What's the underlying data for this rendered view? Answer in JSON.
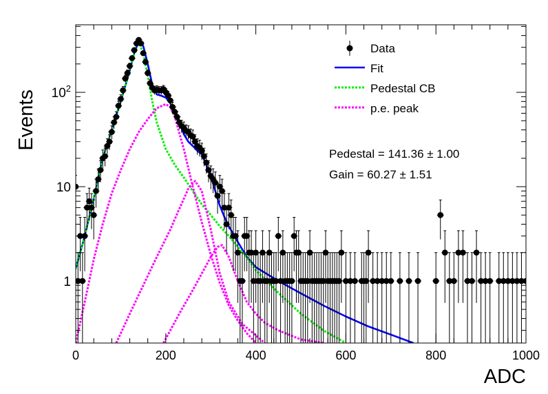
{
  "chart_data": {
    "type": "scatter",
    "xlabel": "ADC",
    "ylabel": "Events",
    "xlim": [
      0,
      1000
    ],
    "ylim": [
      0.22,
      520
    ],
    "yscale": "log",
    "grid": false,
    "legend_position": "top-right",
    "x_ticks": [
      {
        "value": 0,
        "label": "0"
      },
      {
        "value": 200,
        "label": "200"
      },
      {
        "value": 400,
        "label": "400"
      },
      {
        "value": 600,
        "label": "600"
      },
      {
        "value": 800,
        "label": "800"
      },
      {
        "value": 1000,
        "label": "1000"
      }
    ],
    "y_ticks": [
      {
        "value": 1,
        "label": "1"
      },
      {
        "value": 10,
        "label": "10"
      },
      {
        "value": 100,
        "label": "10^2"
      }
    ],
    "legend": [
      {
        "label": "Data",
        "style": "marker",
        "color": "#000000"
      },
      {
        "label": "Fit",
        "style": "solid",
        "color": "#0000ff"
      },
      {
        "label": "Pedestal CB",
        "style": "dotted",
        "color": "#00ee00"
      },
      {
        "label": "p.e. peak",
        "style": "dotted",
        "color": "#ff00ff"
      }
    ],
    "annotations": [
      "Pedestal = 141.36 ± 1.00",
      "Gain = 60.27 ± 1.51"
    ],
    "fit_parameters": {
      "pedestal": 141.36,
      "pedestal_error": 1.0,
      "gain": 60.27,
      "gain_error": 1.51
    },
    "series": [
      {
        "name": "Data",
        "kind": "points",
        "color": "#000000",
        "points": [
          [
            0,
            10
          ],
          [
            5,
            1
          ],
          [
            10,
            3
          ],
          [
            15,
            1
          ],
          [
            20,
            3
          ],
          [
            25,
            6
          ],
          [
            30,
            7
          ],
          [
            35,
            6
          ],
          [
            40,
            5
          ],
          [
            45,
            9
          ],
          [
            50,
            12
          ],
          [
            55,
            15
          ],
          [
            60,
            20
          ],
          [
            65,
            21
          ],
          [
            70,
            27
          ],
          [
            75,
            30
          ],
          [
            80,
            38
          ],
          [
            85,
            48
          ],
          [
            90,
            55
          ],
          [
            95,
            72
          ],
          [
            100,
            85
          ],
          [
            105,
            105
          ],
          [
            110,
            140
          ],
          [
            115,
            160
          ],
          [
            120,
            190
          ],
          [
            125,
            230
          ],
          [
            130,
            280
          ],
          [
            135,
            330
          ],
          [
            140,
            360
          ],
          [
            145,
            330
          ],
          [
            150,
            260
          ],
          [
            155,
            210
          ],
          [
            160,
            160
          ],
          [
            165,
            125
          ],
          [
            170,
            112
          ],
          [
            175,
            105
          ],
          [
            180,
            107
          ],
          [
            185,
            105
          ],
          [
            190,
            105
          ],
          [
            195,
            108
          ],
          [
            200,
            100
          ],
          [
            205,
            93
          ],
          [
            210,
            82
          ],
          [
            215,
            70
          ],
          [
            220,
            62
          ],
          [
            225,
            55
          ],
          [
            230,
            48
          ],
          [
            235,
            44
          ],
          [
            240,
            42
          ],
          [
            245,
            39
          ],
          [
            250,
            38
          ],
          [
            255,
            35
          ],
          [
            260,
            34
          ],
          [
            265,
            30
          ],
          [
            270,
            27
          ],
          [
            275,
            26
          ],
          [
            280,
            24
          ],
          [
            285,
            21
          ],
          [
            290,
            18
          ],
          [
            295,
            15
          ],
          [
            300,
            13
          ],
          [
            305,
            12
          ],
          [
            310,
            11
          ],
          [
            315,
            8
          ],
          [
            320,
            10
          ],
          [
            325,
            9
          ],
          [
            330,
            6
          ],
          [
            335,
            4
          ],
          [
            340,
            6
          ],
          [
            345,
            5
          ],
          [
            350,
            3
          ],
          [
            355,
            3
          ],
          [
            360,
            2
          ],
          [
            365,
            1
          ],
          [
            370,
            1
          ],
          [
            375,
            3
          ],
          [
            380,
            3
          ],
          [
            385,
            2
          ],
          [
            390,
            2
          ],
          [
            395,
            1
          ],
          [
            400,
            2
          ],
          [
            405,
            1
          ],
          [
            410,
            1
          ],
          [
            415,
            2
          ],
          [
            420,
            1
          ],
          [
            425,
            1
          ],
          [
            430,
            2
          ],
          [
            435,
            1
          ],
          [
            440,
            1
          ],
          [
            445,
            1
          ],
          [
            450,
            3
          ],
          [
            455,
            1
          ],
          [
            460,
            2
          ],
          [
            465,
            1
          ],
          [
            470,
            1
          ],
          [
            475,
            1
          ],
          [
            480,
            1
          ],
          [
            485,
            3
          ],
          [
            490,
            2
          ],
          [
            495,
            2
          ],
          [
            500,
            1
          ],
          [
            505,
            1
          ],
          [
            510,
            1
          ],
          [
            515,
            1
          ],
          [
            520,
            2
          ],
          [
            525,
            1
          ],
          [
            530,
            1
          ],
          [
            535,
            1
          ],
          [
            540,
            1
          ],
          [
            545,
            1
          ],
          [
            550,
            1
          ],
          [
            555,
            2
          ],
          [
            560,
            1
          ],
          [
            565,
            1
          ],
          [
            570,
            1
          ],
          [
            575,
            1
          ],
          [
            580,
            1
          ],
          [
            585,
            1
          ],
          [
            590,
            2
          ],
          [
            600,
            1
          ],
          [
            610,
            1
          ],
          [
            620,
            1
          ],
          [
            635,
            1
          ],
          [
            640,
            1
          ],
          [
            645,
            1
          ],
          [
            650,
            2
          ],
          [
            660,
            1
          ],
          [
            670,
            1
          ],
          [
            680,
            1
          ],
          [
            690,
            1
          ],
          [
            700,
            1
          ],
          [
            720,
            1
          ],
          [
            740,
            1
          ],
          [
            760,
            1
          ],
          [
            800,
            1
          ],
          [
            810,
            5
          ],
          [
            820,
            2
          ],
          [
            830,
            1
          ],
          [
            840,
            1
          ],
          [
            850,
            2
          ],
          [
            860,
            2
          ],
          [
            870,
            1
          ],
          [
            880,
            1
          ],
          [
            890,
            2
          ],
          [
            900,
            1
          ],
          [
            910,
            1
          ],
          [
            920,
            1
          ],
          [
            940,
            1
          ],
          [
            950,
            1
          ],
          [
            960,
            1
          ],
          [
            970,
            1
          ],
          [
            980,
            1
          ],
          [
            990,
            1
          ],
          [
            1000,
            1
          ]
        ]
      },
      {
        "name": "Fit",
        "kind": "curve",
        "color": "#0000ff",
        "points": [
          [
            0,
            1.35
          ],
          [
            20,
            3
          ],
          [
            40,
            7.5
          ],
          [
            60,
            20
          ],
          [
            80,
            40
          ],
          [
            100,
            80
          ],
          [
            120,
            170
          ],
          [
            130,
            260
          ],
          [
            140,
            350
          ],
          [
            150,
            310
          ],
          [
            160,
            200
          ],
          [
            170,
            120
          ],
          [
            180,
            95
          ],
          [
            190,
            92
          ],
          [
            200,
            88
          ],
          [
            210,
            77
          ],
          [
            220,
            62
          ],
          [
            230,
            48
          ],
          [
            240,
            36
          ],
          [
            250,
            30
          ],
          [
            260,
            27
          ],
          [
            270,
            24
          ],
          [
            280,
            22
          ],
          [
            290,
            17
          ],
          [
            300,
            13
          ],
          [
            310,
            9
          ],
          [
            320,
            6.3
          ],
          [
            330,
            4.8
          ],
          [
            340,
            3.8
          ],
          [
            360,
            2.6
          ],
          [
            380,
            1.8
          ],
          [
            400,
            1.4
          ],
          [
            450,
            1.0
          ],
          [
            500,
            0.74
          ],
          [
            550,
            0.55
          ],
          [
            600,
            0.42
          ],
          [
            650,
            0.33
          ],
          [
            700,
            0.27
          ],
          [
            750,
            0.22
          ]
        ]
      },
      {
        "name": "Pedestal CB",
        "kind": "curve",
        "color": "#00ee00",
        "points": [
          [
            0,
            1.35
          ],
          [
            20,
            3
          ],
          [
            40,
            7.5
          ],
          [
            60,
            20
          ],
          [
            80,
            40
          ],
          [
            100,
            80
          ],
          [
            120,
            170
          ],
          [
            130,
            260
          ],
          [
            140,
            340
          ],
          [
            150,
            260
          ],
          [
            160,
            150
          ],
          [
            170,
            80
          ],
          [
            180,
            48
          ],
          [
            200,
            25
          ],
          [
            220,
            17
          ],
          [
            240,
            12.5
          ],
          [
            260,
            9
          ],
          [
            280,
            6.5
          ],
          [
            300,
            5
          ],
          [
            320,
            3.8
          ],
          [
            340,
            3
          ],
          [
            360,
            2.3
          ],
          [
            380,
            1.8
          ],
          [
            400,
            1.3
          ],
          [
            450,
            0.75
          ],
          [
            500,
            0.45
          ],
          [
            550,
            0.3
          ],
          [
            600,
            0.22
          ]
        ]
      },
      {
        "name": "p.e. peak 1",
        "kind": "curve",
        "color": "#ff00ff",
        "points": [
          [
            0,
            0.22
          ],
          [
            20,
            0.6
          ],
          [
            40,
            1.7
          ],
          [
            60,
            4
          ],
          [
            80,
            8.5
          ],
          [
            100,
            15
          ],
          [
            120,
            25
          ],
          [
            140,
            38
          ],
          [
            160,
            52
          ],
          [
            180,
            68
          ],
          [
            200,
            75
          ],
          [
            210,
            70
          ],
          [
            220,
            55
          ],
          [
            240,
            25
          ],
          [
            260,
            10
          ],
          [
            280,
            4.2
          ],
          [
            300,
            1.9
          ],
          [
            320,
            0.95
          ],
          [
            340,
            0.55
          ],
          [
            360,
            0.38
          ],
          [
            380,
            0.28
          ],
          [
            400,
            0.22
          ]
        ]
      },
      {
        "name": "p.e. peak 2",
        "kind": "curve",
        "color": "#ff00ff",
        "points": [
          [
            90,
            0.22
          ],
          [
            120,
            0.45
          ],
          [
            150,
            0.9
          ],
          [
            180,
            1.8
          ],
          [
            210,
            3.5
          ],
          [
            230,
            5.8
          ],
          [
            250,
            9.5
          ],
          [
            265,
            11.5
          ],
          [
            280,
            9
          ],
          [
            300,
            3.5
          ],
          [
            320,
            1.2
          ],
          [
            340,
            0.6
          ],
          [
            370,
            0.35
          ],
          [
            420,
            0.22
          ]
        ]
      },
      {
        "name": "p.e. peak 3",
        "kind": "curve",
        "color": "#ff00ff",
        "points": [
          [
            195,
            0.22
          ],
          [
            230,
            0.45
          ],
          [
            260,
            0.8
          ],
          [
            280,
            1.2
          ],
          [
            300,
            1.8
          ],
          [
            315,
            2.3
          ],
          [
            325,
            2.4
          ],
          [
            340,
            1.8
          ],
          [
            360,
            1
          ],
          [
            380,
            0.6
          ],
          [
            400,
            0.45
          ],
          [
            420,
            0.36
          ],
          [
            450,
            0.3
          ],
          [
            500,
            0.24
          ],
          [
            550,
            0.22
          ]
        ]
      }
    ]
  }
}
